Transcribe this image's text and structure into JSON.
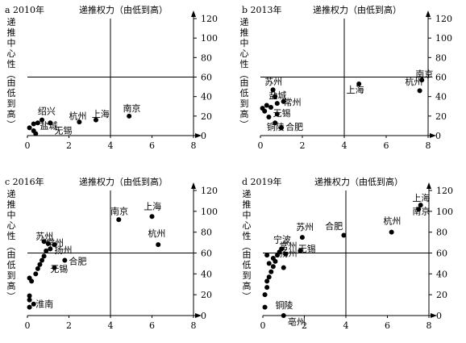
{
  "chart_data": [
    {
      "type": "scatter",
      "title": "a 2010年",
      "xlabel": "递推权力（由低到高）",
      "ylabel": "递推中心性（由低到高）",
      "xlim": [
        0,
        8
      ],
      "ylim": [
        0,
        120
      ],
      "xticks": [
        "0",
        "2",
        "4",
        "6",
        "8"
      ],
      "yticks": [
        "0",
        "20",
        "40",
        "60",
        "80",
        "100",
        "120"
      ],
      "ref_x": 4,
      "ref_y": 60,
      "points": [
        {
          "x": 0.1,
          "y": 8
        },
        {
          "x": 0.3,
          "y": 5
        },
        {
          "x": 0.3,
          "y": 12
        },
        {
          "x": 0.5,
          "y": 13
        },
        {
          "x": 0.7,
          "y": 16
        },
        {
          "x": 1.1,
          "y": 13
        },
        {
          "x": 2.5,
          "y": 14
        },
        {
          "x": 3.3,
          "y": 16
        },
        {
          "x": 4.9,
          "y": 20
        },
        {
          "x": 0.4,
          "y": 2
        }
      ],
      "labels": [
        {
          "text": "绍兴",
          "x": 0.5,
          "y": 22
        },
        {
          "text": "盐城",
          "x": 0.6,
          "y": 7
        },
        {
          "text": "无锡",
          "x": 1.3,
          "y": 2
        },
        {
          "text": "杭州",
          "x": 2.0,
          "y": 17
        },
        {
          "text": "上海",
          "x": 3.1,
          "y": 19
        },
        {
          "text": "南京",
          "x": 4.6,
          "y": 25
        }
      ]
    },
    {
      "type": "scatter",
      "title": "b 2013年",
      "xlabel": "递推权力（由低到高）",
      "ylabel": "递推中心性（由低到高）",
      "xlim": [
        0,
        8
      ],
      "ylim": [
        0,
        120
      ],
      "xticks": [
        "0",
        "2",
        "4",
        "6",
        "8"
      ],
      "yticks": [
        "0",
        "20",
        "40",
        "60",
        "80",
        "100",
        "120"
      ],
      "ref_x": 4,
      "ref_y": 60,
      "points": [
        {
          "x": 0.1,
          "y": 28
        },
        {
          "x": 0.2,
          "y": 25
        },
        {
          "x": 0.3,
          "y": 31
        },
        {
          "x": 0.5,
          "y": 29
        },
        {
          "x": 0.6,
          "y": 47
        },
        {
          "x": 0.7,
          "y": 40
        },
        {
          "x": 0.8,
          "y": 33
        },
        {
          "x": 1.1,
          "y": 35
        },
        {
          "x": 0.8,
          "y": 22
        },
        {
          "x": 0.7,
          "y": 13
        },
        {
          "x": 1.0,
          "y": 8
        },
        {
          "x": 0.4,
          "y": 19
        },
        {
          "x": 4.7,
          "y": 53
        },
        {
          "x": 7.6,
          "y": 46
        },
        {
          "x": 7.7,
          "y": 57
        }
      ],
      "labels": [
        {
          "text": "苏州",
          "x": 0.2,
          "y": 52
        },
        {
          "text": "盐城",
          "x": 0.4,
          "y": 38
        },
        {
          "text": "常州",
          "x": 1.1,
          "y": 31
        },
        {
          "text": "无锡",
          "x": 0.6,
          "y": 20
        },
        {
          "text": "铜陵",
          "x": 0.3,
          "y": 6
        },
        {
          "text": "合肥",
          "x": 1.2,
          "y": 6
        },
        {
          "text": "上海",
          "x": 4.1,
          "y": 44
        },
        {
          "text": "杭州",
          "x": 6.9,
          "y": 52
        },
        {
          "text": "南京",
          "x": 7.4,
          "y": 60
        }
      ]
    },
    {
      "type": "scatter",
      "title": "c 2016年",
      "xlabel": "递推权力（由低到高）",
      "ylabel": "递推中心性（由低到高）",
      "xlim": [
        0,
        8
      ],
      "ylim": [
        0,
        120
      ],
      "xticks": [
        "0",
        "2",
        "4",
        "6",
        "8"
      ],
      "yticks": [
        "0",
        "20",
        "40",
        "60",
        "80",
        "100",
        "120"
      ],
      "ref_x": 4,
      "ref_y": 60,
      "points": [
        {
          "x": 0.1,
          "y": 8
        },
        {
          "x": 0.1,
          "y": 15
        },
        {
          "x": 0.1,
          "y": 19
        },
        {
          "x": 0.3,
          "y": 11
        },
        {
          "x": 0.2,
          "y": 33
        },
        {
          "x": 0.1,
          "y": 36
        },
        {
          "x": 0.4,
          "y": 40
        },
        {
          "x": 0.5,
          "y": 45
        },
        {
          "x": 0.6,
          "y": 49
        },
        {
          "x": 0.7,
          "y": 53
        },
        {
          "x": 0.8,
          "y": 57
        },
        {
          "x": 0.9,
          "y": 62
        },
        {
          "x": 1.1,
          "y": 64
        },
        {
          "x": 1.3,
          "y": 68
        },
        {
          "x": 0.8,
          "y": 71
        },
        {
          "x": 1.0,
          "y": 69
        },
        {
          "x": 1.3,
          "y": 46
        },
        {
          "x": 1.8,
          "y": 53
        },
        {
          "x": 4.4,
          "y": 92
        },
        {
          "x": 6.0,
          "y": 95
        },
        {
          "x": 6.3,
          "y": 68
        }
      ],
      "labels": [
        {
          "text": "苏州",
          "x": 0.4,
          "y": 73
        },
        {
          "text": "常州",
          "x": 0.9,
          "y": 67
        },
        {
          "text": "扬州",
          "x": 1.3,
          "y": 60
        },
        {
          "text": "合肥",
          "x": 2.0,
          "y": 49
        },
        {
          "text": "无锡",
          "x": 1.1,
          "y": 42
        },
        {
          "text": "淮南",
          "x": 0.4,
          "y": 8
        },
        {
          "text": "南京",
          "x": 4.0,
          "y": 97
        },
        {
          "text": "上海",
          "x": 5.6,
          "y": 102
        },
        {
          "text": "杭州",
          "x": 5.8,
          "y": 76
        }
      ]
    },
    {
      "type": "scatter",
      "title": "d 2019年",
      "xlabel": "递推权力（由低到高）",
      "ylabel": "递推中心性（由低到高）",
      "xlim": [
        0,
        8
      ],
      "ylim": [
        0,
        120
      ],
      "xticks": [
        "0",
        "2",
        "4",
        "6",
        "8"
      ],
      "yticks": [
        "0",
        "20",
        "40",
        "60",
        "80",
        "100",
        "120"
      ],
      "ref_x": 4,
      "ref_y": 60,
      "points": [
        {
          "x": 0.1,
          "y": 8
        },
        {
          "x": 0.1,
          "y": 20
        },
        {
          "x": 0.2,
          "y": 27
        },
        {
          "x": 0.2,
          "y": 33
        },
        {
          "x": 0.3,
          "y": 37
        },
        {
          "x": 0.4,
          "y": 42
        },
        {
          "x": 0.5,
          "y": 47
        },
        {
          "x": 0.6,
          "y": 52
        },
        {
          "x": 0.7,
          "y": 58
        },
        {
          "x": 0.8,
          "y": 61
        },
        {
          "x": 0.9,
          "y": 64
        },
        {
          "x": 1.1,
          "y": 59
        },
        {
          "x": 0.5,
          "y": 55
        },
        {
          "x": 0.3,
          "y": 50
        },
        {
          "x": 0.2,
          "y": 58
        },
        {
          "x": 1.0,
          "y": 46
        },
        {
          "x": 1.8,
          "y": 62
        },
        {
          "x": 1.9,
          "y": 75
        },
        {
          "x": 3.9,
          "y": 77
        },
        {
          "x": 6.2,
          "y": 80
        },
        {
          "x": 7.5,
          "y": 102
        },
        {
          "x": 7.6,
          "y": 106
        },
        {
          "x": 1.0,
          "y": 0
        }
      ],
      "labels": [
        {
          "text": "苏州",
          "x": 1.6,
          "y": 82
        },
        {
          "text": "合肥",
          "x": 3.0,
          "y": 83
        },
        {
          "text": "宁波",
          "x": 0.5,
          "y": 70
        },
        {
          "text": "常州",
          "x": 0.8,
          "y": 64
        },
        {
          "text": "扬州",
          "x": 0.8,
          "y": 57
        },
        {
          "text": "无锡",
          "x": 1.7,
          "y": 61
        },
        {
          "text": "杭州",
          "x": 5.8,
          "y": 88
        },
        {
          "text": "上海",
          "x": 7.2,
          "y": 110
        },
        {
          "text": "南京",
          "x": 7.2,
          "y": 97
        },
        {
          "text": "铜陵",
          "x": 0.6,
          "y": 7
        },
        {
          "text": "亳州",
          "x": 1.2,
          "y": -9
        }
      ]
    }
  ]
}
